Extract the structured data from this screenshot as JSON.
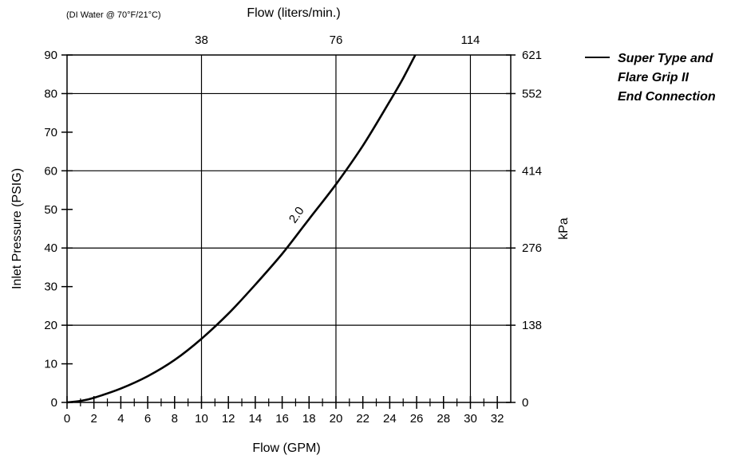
{
  "chart_data": {
    "type": "line",
    "note": "(DI Water @ 70°F/21°C)",
    "xlabel": "Flow (GPM)",
    "x2label": "Flow (liters/min.)",
    "ylabel": "Inlet Pressure (PSIG)",
    "y2label": "kPa",
    "xlim": [
      0,
      33
    ],
    "ylim": [
      0,
      90
    ],
    "x_ticks": [
      0,
      2,
      4,
      6,
      8,
      10,
      12,
      14,
      16,
      18,
      20,
      22,
      24,
      26,
      28,
      30,
      32
    ],
    "x_minor_ticks": [
      1,
      3,
      5,
      7,
      9,
      11,
      13,
      15,
      17,
      19,
      21,
      23,
      25,
      27,
      29,
      31
    ],
    "y_ticks": [
      0,
      10,
      20,
      30,
      40,
      50,
      60,
      70,
      80,
      90
    ],
    "x_grid": [
      10,
      20,
      30
    ],
    "y_grid": [
      20,
      40,
      60,
      80
    ],
    "x2_ticks": [
      {
        "at": 10,
        "label": "38"
      },
      {
        "at": 20,
        "label": "76"
      },
      {
        "at": 30,
        "label": "114"
      }
    ],
    "y2_ticks": [
      {
        "at": 0,
        "label": "0"
      },
      {
        "at": 20,
        "label": "138"
      },
      {
        "at": 40,
        "label": "276"
      },
      {
        "at": 60,
        "label": "414"
      },
      {
        "at": 80,
        "label": "552"
      },
      {
        "at": 90,
        "label": "621"
      }
    ],
    "series": [
      {
        "label": "2.0",
        "label_at": {
          "x": 17.3,
          "y": 48
        },
        "points": [
          {
            "x": 0,
            "y": 0
          },
          {
            "x": 1,
            "y": 0.4
          },
          {
            "x": 2,
            "y": 1.2
          },
          {
            "x": 4,
            "y": 3.6
          },
          {
            "x": 6,
            "y": 6.8
          },
          {
            "x": 8,
            "y": 11
          },
          {
            "x": 10,
            "y": 16.5
          },
          {
            "x": 12,
            "y": 23
          },
          {
            "x": 14,
            "y": 30.5
          },
          {
            "x": 16,
            "y": 38.5
          },
          {
            "x": 18,
            "y": 47.5
          },
          {
            "x": 20,
            "y": 56.5
          },
          {
            "x": 22,
            "y": 66.5
          },
          {
            "x": 24,
            "y": 78
          },
          {
            "x": 25,
            "y": 84
          },
          {
            "x": 25.9,
            "y": 90
          }
        ]
      }
    ],
    "legend": {
      "lines": [
        "Super Type and",
        "Flare Grip II",
        "End Connection"
      ],
      "placement": "right"
    },
    "grid": true
  }
}
